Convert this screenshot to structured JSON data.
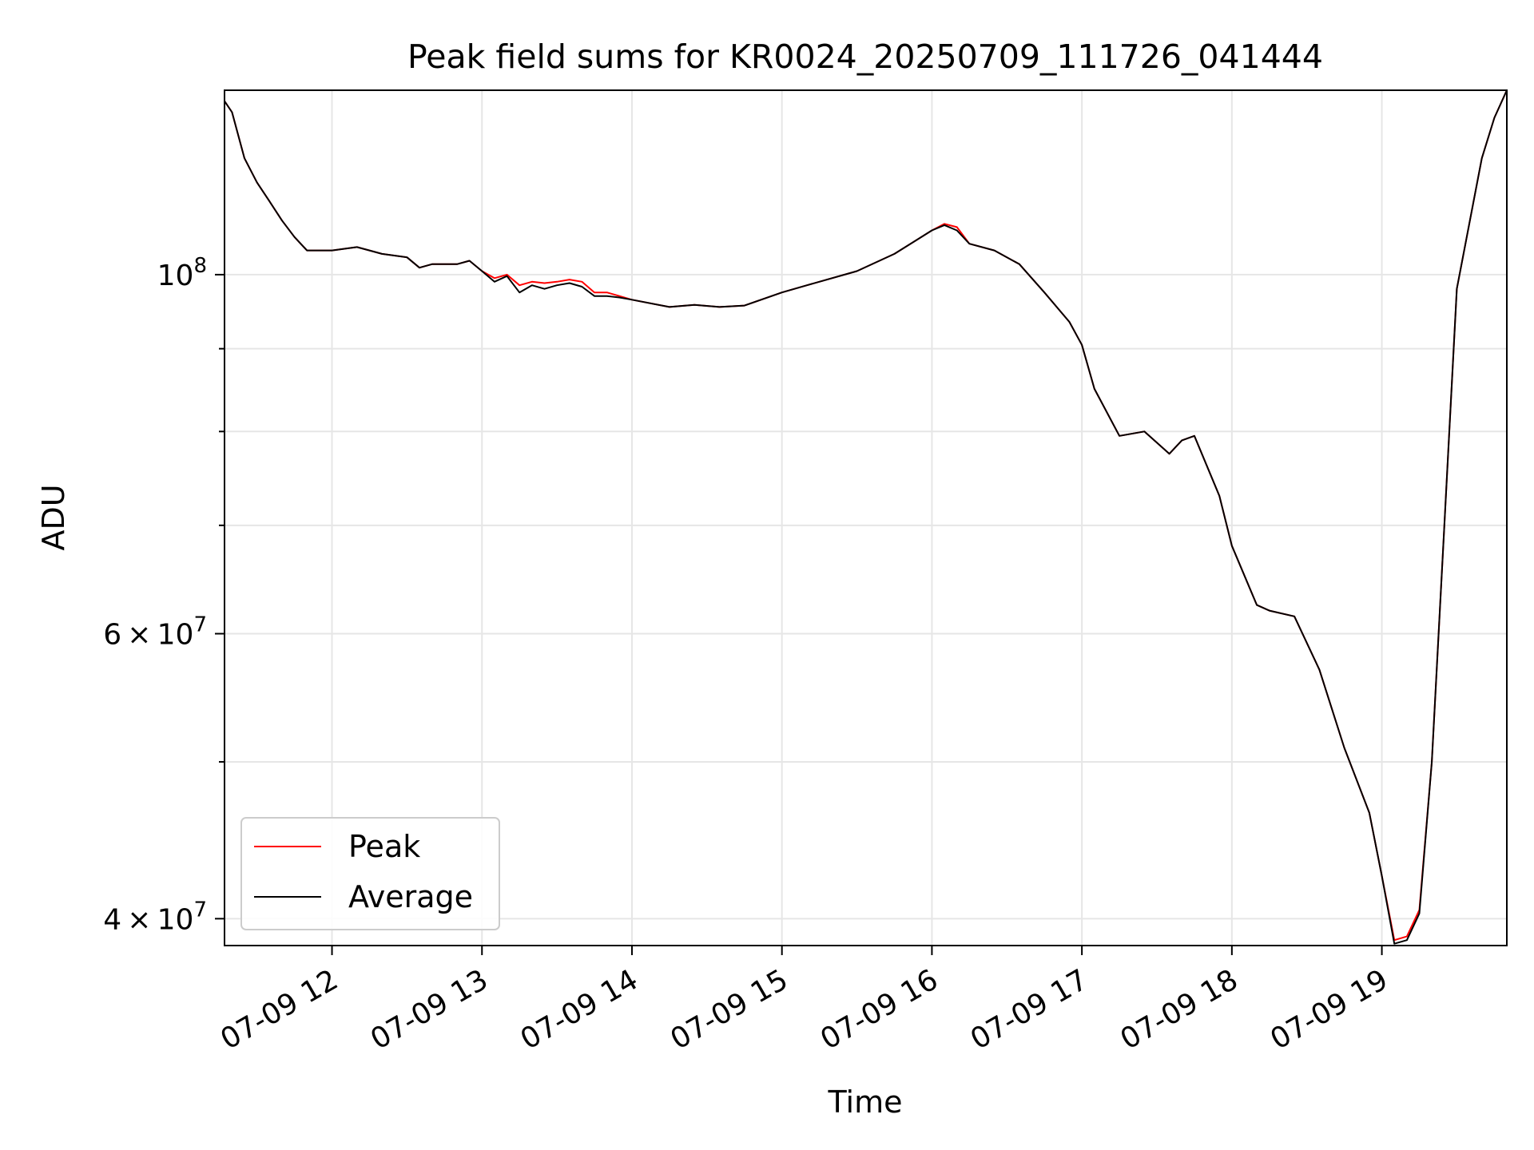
{
  "chart_data": {
    "type": "line",
    "title": "Peak field sums for KR0024_20250709_111726_041444",
    "xlabel": "Time",
    "ylabel": "ADU",
    "y_scale": "log",
    "xlim": [
      "2025-07-09 11:17",
      "2025-07-09 19:50"
    ],
    "ylim": [
      38500000,
      130000000
    ],
    "x_ticks": [
      {
        "value": "2025-07-09 12:00",
        "label": "07-09 12"
      },
      {
        "value": "2025-07-09 13:00",
        "label": "07-09 13"
      },
      {
        "value": "2025-07-09 14:00",
        "label": "07-09 14"
      },
      {
        "value": "2025-07-09 15:00",
        "label": "07-09 15"
      },
      {
        "value": "2025-07-09 16:00",
        "label": "07-09 16"
      },
      {
        "value": "2025-07-09 17:00",
        "label": "07-09 17"
      },
      {
        "value": "2025-07-09 18:00",
        "label": "07-09 18"
      },
      {
        "value": "2025-07-09 19:00",
        "label": "07-09 19"
      }
    ],
    "y_ticks_major": [
      {
        "value": 40000000,
        "base": "4",
        "mant": "10",
        "exp": "7"
      },
      {
        "value": 60000000,
        "base": "6",
        "mant": "10",
        "exp": "7"
      },
      {
        "value": 100000000,
        "base": "",
        "mant": "10",
        "exp": "8"
      }
    ],
    "y_ticks_minor": [
      50000000,
      70000000,
      80000000,
      90000000
    ],
    "grid": true,
    "legend_position": "lower-left",
    "series": [
      {
        "name": "Peak",
        "color": "#ff0000"
      },
      {
        "name": "Average",
        "color": "#000000"
      }
    ],
    "x": [
      "2025-07-09 11:17",
      "2025-07-09 11:20",
      "2025-07-09 11:25",
      "2025-07-09 11:30",
      "2025-07-09 11:35",
      "2025-07-09 11:40",
      "2025-07-09 11:45",
      "2025-07-09 11:50",
      "2025-07-09 12:00",
      "2025-07-09 12:10",
      "2025-07-09 12:15",
      "2025-07-09 12:20",
      "2025-07-09 12:30",
      "2025-07-09 12:35",
      "2025-07-09 12:40",
      "2025-07-09 12:50",
      "2025-07-09 12:55",
      "2025-07-09 13:00",
      "2025-07-09 13:05",
      "2025-07-09 13:10",
      "2025-07-09 13:15",
      "2025-07-09 13:20",
      "2025-07-09 13:25",
      "2025-07-09 13:30",
      "2025-07-09 13:35",
      "2025-07-09 13:40",
      "2025-07-09 13:45",
      "2025-07-09 13:50",
      "2025-07-09 13:55",
      "2025-07-09 14:00",
      "2025-07-09 14:15",
      "2025-07-09 14:25",
      "2025-07-09 14:35",
      "2025-07-09 14:45",
      "2025-07-09 15:00",
      "2025-07-09 15:10",
      "2025-07-09 15:30",
      "2025-07-09 15:45",
      "2025-07-09 16:00",
      "2025-07-09 16:05",
      "2025-07-09 16:10",
      "2025-07-09 16:15",
      "2025-07-09 16:25",
      "2025-07-09 16:35",
      "2025-07-09 16:45",
      "2025-07-09 16:55",
      "2025-07-09 17:00",
      "2025-07-09 17:05",
      "2025-07-09 17:15",
      "2025-07-09 17:25",
      "2025-07-09 17:35",
      "2025-07-09 17:40",
      "2025-07-09 17:45",
      "2025-07-09 17:55",
      "2025-07-09 18:00",
      "2025-07-09 18:10",
      "2025-07-09 18:15",
      "2025-07-09 18:25",
      "2025-07-09 18:35",
      "2025-07-09 18:45",
      "2025-07-09 18:55",
      "2025-07-09 19:00",
      "2025-07-09 19:05",
      "2025-07-09 19:10",
      "2025-07-09 19:15",
      "2025-07-09 19:20",
      "2025-07-09 19:25",
      "2025-07-09 19:30",
      "2025-07-09 19:40",
      "2025-07-09 19:45",
      "2025-07-09 19:50"
    ],
    "peak": [
      128000000,
      126000000,
      118000000,
      114000000,
      111000000,
      108000000,
      105500000,
      103500000,
      103500000,
      104000000,
      103500000,
      103000000,
      102500000,
      101000000,
      101500000,
      101500000,
      102000000,
      100500000,
      99500000,
      100000000,
      98500000,
      99000000,
      98800000,
      99000000,
      99300000,
      99000000,
      97500000,
      97500000,
      97000000,
      96500000,
      95500000,
      95800000,
      95500000,
      95700000,
      97500000,
      98500000,
      100500000,
      103000000,
      106500000,
      107500000,
      107000000,
      104500000,
      103500000,
      101500000,
      97500000,
      93500000,
      90500000,
      85000000,
      79500000,
      80000000,
      77500000,
      79000000,
      79500000,
      73000000,
      68000000,
      62500000,
      62000000,
      61500000,
      57000000,
      51000000,
      46500000,
      42500000,
      38800000,
      39000000,
      40500000,
      50000000,
      70000000,
      98000000,
      118000000,
      125000000,
      130000000
    ],
    "average": [
      128000000,
      126000000,
      118000000,
      114000000,
      111000000,
      108000000,
      105500000,
      103500000,
      103500000,
      104000000,
      103500000,
      103000000,
      102500000,
      101000000,
      101500000,
      101500000,
      102000000,
      100500000,
      99000000,
      99800000,
      97500000,
      98500000,
      98000000,
      98500000,
      98800000,
      98300000,
      97000000,
      97000000,
      96800000,
      96500000,
      95500000,
      95800000,
      95500000,
      95700000,
      97500000,
      98500000,
      100500000,
      103000000,
      106500000,
      107300000,
      106500000,
      104500000,
      103500000,
      101500000,
      97500000,
      93500000,
      90500000,
      85000000,
      79500000,
      80000000,
      77500000,
      79000000,
      79500000,
      73000000,
      68000000,
      62500000,
      62000000,
      61500000,
      57000000,
      51000000,
      46500000,
      42500000,
      38600000,
      38800000,
      40300000,
      50000000,
      70000000,
      98000000,
      118000000,
      125000000,
      130000000
    ]
  }
}
